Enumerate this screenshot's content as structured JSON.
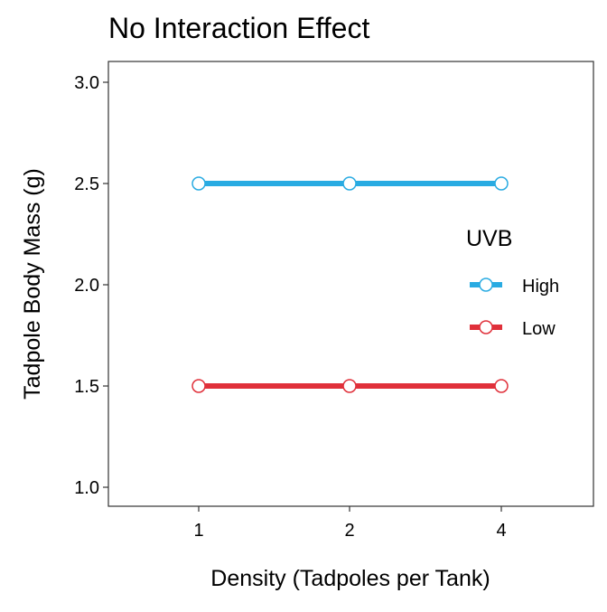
{
  "chart_data": {
    "type": "line",
    "title": "No Interaction Effect",
    "xlabel": "Density (Tadpoles per Tank)",
    "ylabel": "Tadpole Body Mass (g)",
    "categories": [
      "1",
      "2",
      "4"
    ],
    "ylim": [
      0.9,
      3.1
    ],
    "yticks": [
      "1.0",
      "1.5",
      "2.0",
      "2.5",
      "3.0"
    ],
    "grid": false,
    "legend_title": "UVB",
    "legend_position": "right, inside plot",
    "series": [
      {
        "name": "High",
        "values": [
          2.5,
          2.5,
          2.5
        ],
        "color": "#29abe2"
      },
      {
        "name": "Low",
        "values": [
          1.5,
          1.5,
          1.5
        ],
        "color": "#e0303a"
      }
    ]
  }
}
